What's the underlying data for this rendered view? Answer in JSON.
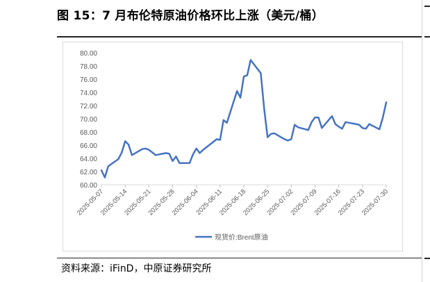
{
  "figure": {
    "title": "图 15：7 月布伦特原油价格环比上涨（美元/桶）",
    "source": "资料来源：iFinD，中原证券研究所"
  },
  "chart_data": {
    "type": "line",
    "legend": "bottom-center",
    "grid": false,
    "ylim": [
      60,
      80
    ],
    "yticks": [
      "60.00",
      "62.00",
      "64.00",
      "66.00",
      "68.00",
      "70.00",
      "72.00",
      "74.00",
      "76.00",
      "78.00",
      "80.00"
    ],
    "xticks": [
      "2025-05-07",
      "2025-05-14",
      "2025-05-21",
      "2025-05-28",
      "2025-06-04",
      "2025-06-11",
      "2025-06-18",
      "2025-06-25",
      "2025-07-02",
      "2025-07-09",
      "2025-07-16",
      "2025-07-23",
      "2025-07-30"
    ],
    "series": [
      {
        "name": "现货价:Brent原油",
        "color": "#4472C4",
        "x": [
          "2025-05-07",
          "2025-05-08",
          "2025-05-09",
          "2025-05-12",
          "2025-05-13",
          "2025-05-14",
          "2025-05-15",
          "2025-05-16",
          "2025-05-19",
          "2025-05-20",
          "2025-05-21",
          "2025-05-22",
          "2025-05-23",
          "2025-05-26",
          "2025-05-27",
          "2025-05-28",
          "2025-05-29",
          "2025-05-30",
          "2025-06-02",
          "2025-06-03",
          "2025-06-04",
          "2025-06-05",
          "2025-06-06",
          "2025-06-09",
          "2025-06-10",
          "2025-06-11",
          "2025-06-12",
          "2025-06-13",
          "2025-06-16",
          "2025-06-17",
          "2025-06-18",
          "2025-06-19",
          "2025-06-20",
          "2025-06-23",
          "2025-06-24",
          "2025-06-25",
          "2025-06-26",
          "2025-06-27",
          "2025-06-30",
          "2025-07-01",
          "2025-07-02",
          "2025-07-03",
          "2025-07-04",
          "2025-07-07",
          "2025-07-08",
          "2025-07-09",
          "2025-07-10",
          "2025-07-11",
          "2025-07-14",
          "2025-07-15",
          "2025-07-16",
          "2025-07-17",
          "2025-07-18",
          "2025-07-21",
          "2025-07-22",
          "2025-07-23",
          "2025-07-24",
          "2025-07-25",
          "2025-07-28",
          "2025-07-29",
          "2025-07-30"
        ],
        "values": [
          62.2,
          61.1,
          62.8,
          63.9,
          64.9,
          66.6,
          66.1,
          64.5,
          65.4,
          65.5,
          65.3,
          64.9,
          64.5,
          64.8,
          64.7,
          63.6,
          64.3,
          63.3,
          63.3,
          64.6,
          65.5,
          64.8,
          65.3,
          66.5,
          66.9,
          66.8,
          69.8,
          69.4,
          74.2,
          73.2,
          76.4,
          76.6,
          78.9,
          76.9,
          71.5,
          67.2,
          67.7,
          67.8,
          66.9,
          66.7,
          66.9,
          69.1,
          68.7,
          68.3,
          69.5,
          70.2,
          70.2,
          68.6,
          70.4,
          69.2,
          68.8,
          68.5,
          69.5,
          69.2,
          69.1,
          68.6,
          68.5,
          69.2,
          68.4,
          70.2,
          72.5
        ]
      }
    ]
  }
}
